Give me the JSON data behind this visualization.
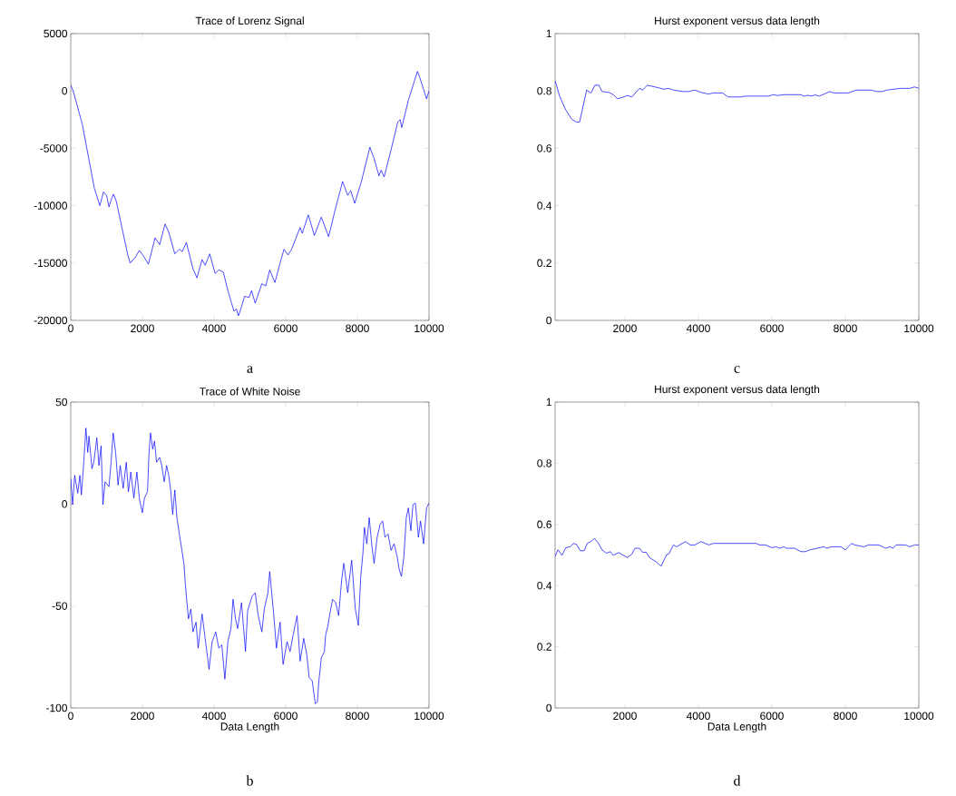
{
  "chart_data": [
    {
      "type": "line",
      "title": "Trace of Lorenz Signal",
      "color": "#0000ff",
      "xlim": [
        0,
        10000
      ],
      "ylim": [
        -20000,
        5000
      ],
      "xticks": [
        0,
        2000,
        4000,
        6000,
        8000,
        10000
      ],
      "yticks": [
        -20000,
        -15000,
        -10000,
        -5000,
        0,
        5000
      ],
      "annotations": [
        "a"
      ],
      "x": [
        0,
        68,
        322,
        660,
        813,
        914,
        999,
        1067,
        1126,
        1194,
        1270,
        1592,
        1660,
        1804,
        1914,
        2032,
        2168,
        2354,
        2481,
        2633,
        2735,
        2904,
        3031,
        3116,
        3226,
        3412,
        3522,
        3666,
        3751,
        3878,
        4030,
        4132,
        4259,
        4386,
        4556,
        4623,
        4682,
        4767,
        4852,
        4979,
        5047,
        5148,
        5334,
        5444,
        5554,
        5698,
        5843,
        5953,
        6063,
        6164,
        6291,
        6401,
        6461,
        6630,
        6800,
        6994,
        7198,
        7393,
        7587,
        7731,
        7816,
        7926,
        8112,
        8349,
        8467,
        8603,
        8662,
        8747,
        8958,
        9128,
        9195,
        9238,
        9424,
        9636,
        9678,
        9738,
        9932,
        10000
      ],
      "values": [
        500,
        0,
        -2900,
        -8500,
        -10000,
        -8800,
        -9100,
        -10100,
        -9500,
        -9000,
        -9600,
        -14300,
        -15000,
        -14500,
        -13900,
        -14400,
        -15100,
        -12800,
        -13400,
        -11600,
        -12300,
        -14200,
        -13800,
        -14000,
        -13200,
        -15500,
        -16300,
        -14700,
        -15200,
        -14200,
        -15900,
        -15600,
        -15800,
        -17400,
        -19200,
        -19000,
        -19600,
        -18800,
        -17900,
        -18000,
        -17400,
        -18500,
        -16800,
        -17000,
        -15600,
        -16700,
        -15000,
        -13800,
        -14300,
        -13800,
        -12800,
        -11900,
        -12400,
        -10800,
        -12600,
        -11000,
        -12700,
        -10200,
        -7900,
        -9100,
        -8700,
        -9800,
        -7900,
        -4900,
        -5900,
        -7400,
        -6900,
        -7500,
        -4900,
        -2700,
        -2500,
        -3200,
        -800,
        1300,
        1700,
        1200,
        -700,
        0
      ]
    },
    {
      "type": "line",
      "title": "Hurst exponent versus data length",
      "color": "#0000ff",
      "xlim": [
        100,
        10000
      ],
      "ylim": [
        0,
        1
      ],
      "xticks": [
        2000,
        4000,
        6000,
        8000,
        10000
      ],
      "yticks": [
        0,
        0.2,
        0.4,
        0.6,
        0.8,
        1
      ],
      "annotations": [
        "c"
      ],
      "x": [
        100,
        222,
        389,
        556,
        682,
        766,
        958,
        1075,
        1184,
        1293,
        1377,
        1561,
        1686,
        1795,
        1896,
        2063,
        2189,
        2398,
        2482,
        2608,
        2817,
        3068,
        3193,
        3319,
        3570,
        3737,
        3904,
        4072,
        4281,
        4406,
        4657,
        4807,
        5158,
        5284,
        5911,
        6036,
        6162,
        6329,
        6789,
        6873,
        6981,
        7065,
        7182,
        7291,
        7584,
        7684,
        8085,
        8294,
        8712,
        8838,
        9005,
        9130,
        9507,
        9758,
        9883,
        10000
      ],
      "values": [
        0.836,
        0.782,
        0.734,
        0.701,
        0.691,
        0.691,
        0.803,
        0.793,
        0.82,
        0.82,
        0.798,
        0.795,
        0.787,
        0.773,
        0.776,
        0.784,
        0.779,
        0.809,
        0.803,
        0.82,
        0.814,
        0.806,
        0.809,
        0.803,
        0.798,
        0.798,
        0.803,
        0.795,
        0.789,
        0.793,
        0.793,
        0.779,
        0.779,
        0.782,
        0.782,
        0.787,
        0.784,
        0.787,
        0.787,
        0.782,
        0.785,
        0.782,
        0.786,
        0.782,
        0.798,
        0.793,
        0.793,
        0.803,
        0.803,
        0.798,
        0.798,
        0.803,
        0.809,
        0.809,
        0.814,
        0.809
      ]
    },
    {
      "type": "line",
      "title": "Trace of White Noise",
      "xlabel": "Data Length",
      "color": "#0000ff",
      "xlim": [
        0,
        10000
      ],
      "ylim": [
        -100,
        50
      ],
      "xticks": [
        0,
        2000,
        4000,
        6000,
        8000,
        10000
      ],
      "yticks": [
        -100,
        -50,
        0,
        50
      ],
      "annotations": [
        "b"
      ],
      "x": [
        0,
        51,
        110,
        195,
        254,
        296,
        364,
        423,
        474,
        508,
        593,
        644,
        728,
        787,
        847,
        898,
        957,
        1067,
        1126,
        1185,
        1253,
        1321,
        1380,
        1465,
        1550,
        1609,
        1677,
        1761,
        1846,
        1914,
        1998,
        2058,
        2142,
        2185,
        2227,
        2286,
        2337,
        2396,
        2481,
        2540,
        2608,
        2676,
        2735,
        2794,
        2845,
        2904,
        2963,
        3031,
        3116,
        3158,
        3200,
        3243,
        3285,
        3353,
        3412,
        3497,
        3556,
        3666,
        3751,
        3861,
        3946,
        4047,
        4132,
        4217,
        4301,
        4386,
        4471,
        4530,
        4598,
        4657,
        4767,
        4877,
        4937,
        5064,
        5148,
        5233,
        5334,
        5402,
        5504,
        5554,
        5656,
        5741,
        5843,
        5927,
        6037,
        6122,
        6206,
        6317,
        6401,
        6503,
        6588,
        6655,
        6740,
        6825,
        6884,
        6926,
        6994,
        7079,
        7113,
        7180,
        7223,
        7308,
        7392,
        7477,
        7562,
        7621,
        7731,
        7841,
        7943,
        8027,
        8095,
        8154,
        8197,
        8264,
        8332,
        8408,
        8467,
        8552,
        8637,
        8704,
        8772,
        8857,
        8941,
        9026,
        9111,
        9170,
        9229,
        9297,
        9365,
        9424,
        9492,
        9551,
        9619,
        9704,
        9763,
        9848,
        9932,
        10000
      ],
      "values": [
        12.5,
        -0.3,
        14.1,
        5.3,
        14.1,
        4.5,
        20.5,
        37.3,
        25.3,
        33.3,
        17.3,
        20.5,
        32.5,
        18.9,
        28.5,
        -0.3,
        10.9,
        8.5,
        20.5,
        34.9,
        25.3,
        9.3,
        18.9,
        7.7,
        20.5,
        6.1,
        15.7,
        2.9,
        15.7,
        2.9,
        -4.3,
        2.9,
        6.1,
        25.3,
        34.9,
        26.9,
        30.9,
        20.5,
        22.9,
        18.9,
        10.9,
        18.9,
        14.1,
        6.1,
        -5.1,
        6.9,
        -6.7,
        -14.7,
        -24.3,
        -29.1,
        -39.5,
        -48.3,
        -56.3,
        -51.5,
        -62.7,
        -57.9,
        -70.7,
        -53.9,
        -65.9,
        -81.1,
        -67.5,
        -62.7,
        -70.7,
        -69.1,
        -85.9,
        -67.5,
        -61.1,
        -46.7,
        -56.3,
        -61.1,
        -48.3,
        -72.3,
        -52.3,
        -45.1,
        -43.5,
        -54.7,
        -62.7,
        -51.5,
        -43.5,
        -33.1,
        -52.3,
        -70.7,
        -57.9,
        -78.7,
        -67.5,
        -72.3,
        -64.3,
        -54.7,
        -77.1,
        -65.9,
        -73.9,
        -85.1,
        -86.7,
        -97.9,
        -97.1,
        -86.7,
        -75.5,
        -72.3,
        -64.3,
        -59.5,
        -54.7,
        -46.7,
        -48.3,
        -54.7,
        -37.1,
        -29.1,
        -43.5,
        -27.5,
        -51.5,
        -59.5,
        -35.5,
        -24.3,
        -11.5,
        -19.5,
        -6.7,
        -21.1,
        -29.1,
        -16.3,
        -9.9,
        -8.3,
        -16.3,
        -14.7,
        -22.7,
        -19.5,
        -25.9,
        -32.3,
        -35.5,
        -25.9,
        -6.7,
        -1.9,
        -13.1,
        -0.3,
        0.5,
        -16.3,
        -8.3,
        -19.5,
        -1.9,
        0.5
      ]
    },
    {
      "type": "line",
      "title": "Hurst exponent versus data length",
      "xlabel": "Data Length",
      "color": "#0000ff",
      "xlim": [
        100,
        10000
      ],
      "ylim": [
        0,
        1
      ],
      "xticks": [
        2000,
        4000,
        6000,
        8000,
        10000
      ],
      "yticks": [
        0,
        0.2,
        0.4,
        0.6,
        0.8,
        1
      ],
      "annotations": [
        "d"
      ],
      "x": [
        100,
        180,
        288,
        389,
        514,
        598,
        682,
        782,
        891,
        975,
        1075,
        1167,
        1268,
        1377,
        1494,
        1603,
        1686,
        1829,
        2063,
        2189,
        2273,
        2398,
        2482,
        2582,
        2666,
        2858,
        2984,
        3135,
        3193,
        3319,
        3402,
        3653,
        3779,
        3904,
        4072,
        4281,
        4406,
        5577,
        5660,
        5828,
        5995,
        6120,
        6204,
        6329,
        6396,
        6622,
        6789,
        6915,
        7040,
        7416,
        7500,
        7625,
        7876,
        8002,
        8169,
        8253,
        8503,
        8629,
        8922,
        9089,
        9214,
        9298,
        9382,
        9633,
        9758,
        9883,
        10000
      ],
      "values": [
        0.495,
        0.517,
        0.499,
        0.524,
        0.527,
        0.538,
        0.535,
        0.514,
        0.514,
        0.538,
        0.544,
        0.554,
        0.541,
        0.517,
        0.506,
        0.511,
        0.499,
        0.508,
        0.492,
        0.503,
        0.522,
        0.522,
        0.509,
        0.509,
        0.492,
        0.477,
        0.463,
        0.501,
        0.503,
        0.533,
        0.527,
        0.544,
        0.533,
        0.533,
        0.544,
        0.533,
        0.538,
        0.538,
        0.533,
        0.533,
        0.524,
        0.527,
        0.522,
        0.527,
        0.522,
        0.522,
        0.511,
        0.511,
        0.517,
        0.527,
        0.522,
        0.527,
        0.527,
        0.517,
        0.538,
        0.533,
        0.527,
        0.533,
        0.533,
        0.522,
        0.527,
        0.522,
        0.533,
        0.533,
        0.527,
        0.533,
        0.533
      ]
    }
  ]
}
